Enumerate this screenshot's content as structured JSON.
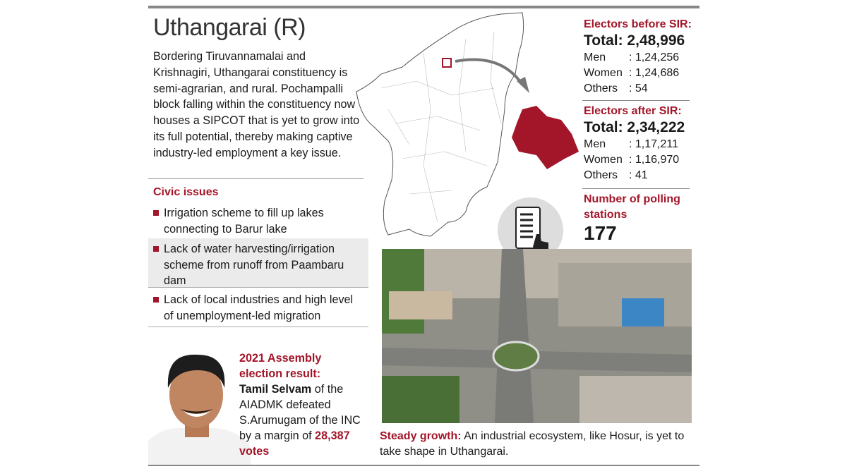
{
  "title": "Uthangarai (R)",
  "intro": "Bordering Tiruvannamalai and Krishnagiri, Uthangarai constituency is semi-agrarian, and rural. Pochampalli block falling within the constituency now houses a SIPCOT that is yet to grow into its full potential, thereby making captive industry-led employment a key issue.",
  "civic": {
    "heading": "Civic issues",
    "items": [
      "Irrigation scheme to fill up lakes connecting to Barur lake",
      "Lack of water harvesting/irrigation scheme from runoff from Paambaru dam",
      "Lack of local industries and high level of unemployment-led migration"
    ]
  },
  "result": {
    "heading": "2021 Assembly election result:",
    "winner": "Tamil Selvam",
    "text1": " of the AIADMK defeated S.Arumugam of the INC by a margin of ",
    "margin": "28,387",
    "votes": "votes"
  },
  "before": {
    "heading": "Electors before SIR:",
    "total": "Total: 2,48,996",
    "rows": [
      {
        "label": "Men",
        "value": ": 1,24,256"
      },
      {
        "label": "Women",
        "value": ": 1,24,686"
      },
      {
        "label": "Others",
        "value": ": 54"
      }
    ]
  },
  "after": {
    "heading": "Electors after SIR:",
    "total": "Total: 2,34,222",
    "rows": [
      {
        "label": "Men",
        "value": ": 1,17,211"
      },
      {
        "label": "Women",
        "value": ": 1,16,970"
      },
      {
        "label": "Others",
        "value": ": 41"
      }
    ]
  },
  "polling": {
    "heading": "Number of polling stations",
    "value": "177"
  },
  "caption": {
    "label": "Steady growth:",
    "text": " An industrial ecosystem, like Hosur, is yet to take shape in Uthangarai."
  },
  "colors": {
    "accent": "#a3162a"
  },
  "icons": {
    "evm": "voting-machine-icon"
  }
}
